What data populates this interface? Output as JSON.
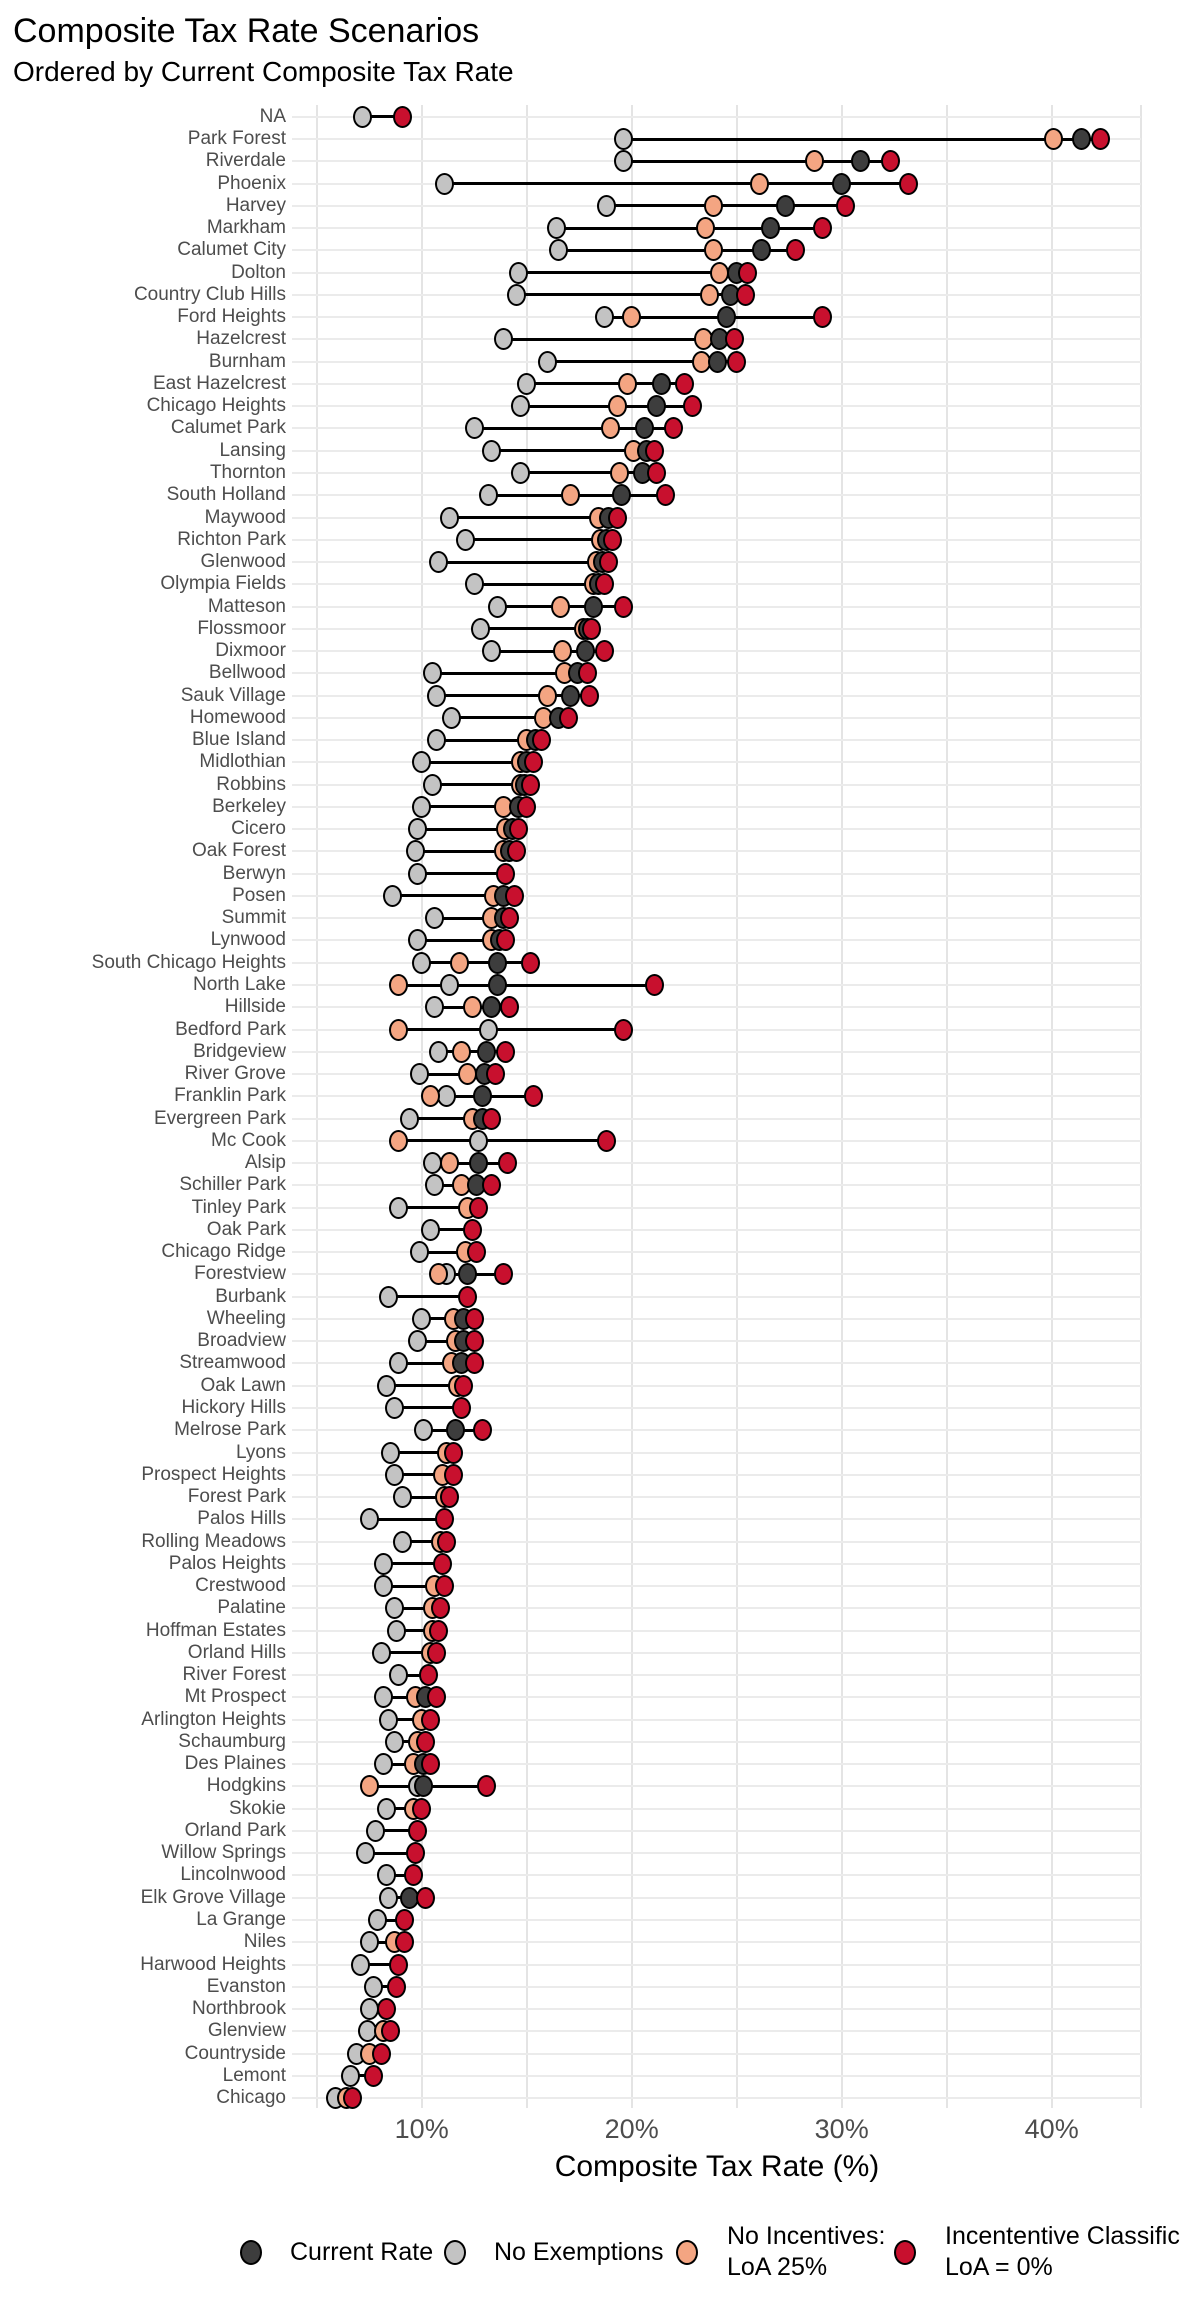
{
  "title": "Composite Tax Rate Scenarios",
  "subtitle": "Ordered by Current Composite Tax Rate",
  "x_axis": {
    "label": "Composite Tax Rate (%)",
    "tick_labels": [
      "10%",
      "20%",
      "30%",
      "40%"
    ],
    "tick_values": [
      10,
      20,
      30,
      40
    ]
  },
  "legend": {
    "items": [
      {
        "name": "current-rate",
        "lines": [
          "Current Rate"
        ],
        "color": "#3D3D3D"
      },
      {
        "name": "no-exemptions",
        "lines": [
          "No Exemptions"
        ],
        "color": "#C3C3C3"
      },
      {
        "name": "no-incentives-loa-25",
        "lines": [
          "No Incentives:",
          "LoA 25%"
        ],
        "color": "#F4A582"
      },
      {
        "name": "incentive-classification-loa-0",
        "lines": [
          "Incententive Classific",
          "LoA = 0%"
        ],
        "color": "#C8102E"
      }
    ]
  },
  "chart_data": {
    "type": "scatter",
    "subtype": "dumbbell-dot-plot",
    "title": "Composite Tax Rate Scenarios",
    "subtitle": "Ordered by Current Composite Tax Rate",
    "xlabel": "Composite Tax Rate (%)",
    "ylabel": "",
    "xlim": [
      3.8,
      44.3
    ],
    "x_ticks": [
      10,
      20,
      30,
      40
    ],
    "grid": "on",
    "legend_position": "bottom",
    "categories": [
      "NA",
      "Park Forest",
      "Riverdale",
      "Phoenix",
      "Harvey",
      "Markham",
      "Calumet City",
      "Dolton",
      "Country Club Hills",
      "Ford Heights",
      "Hazelcrest",
      "Burnham",
      "East Hazelcrest",
      "Chicago Heights",
      "Calumet Park",
      "Lansing",
      "Thornton",
      "South Holland",
      "Maywood",
      "Richton Park",
      "Glenwood",
      "Olympia Fields",
      "Matteson",
      "Flossmoor",
      "Dixmoor",
      "Bellwood",
      "Sauk Village",
      "Homewood",
      "Blue Island",
      "Midlothian",
      "Robbins",
      "Berkeley",
      "Cicero",
      "Oak Forest",
      "Berwyn",
      "Posen",
      "Summit",
      "Lynwood",
      "South Chicago Heights",
      "North Lake",
      "Hillside",
      "Bedford Park",
      "Bridgeview",
      "River Grove",
      "Franklin Park",
      "Evergreen Park",
      "Mc Cook",
      "Alsip",
      "Schiller Park",
      "Tinley Park",
      "Oak Park",
      "Chicago Ridge",
      "Forestview",
      "Burbank",
      "Wheeling",
      "Broadview",
      "Streamwood",
      "Oak Lawn",
      "Hickory Hills",
      "Melrose Park",
      "Lyons",
      "Prospect Heights",
      "Forest Park",
      "Palos Hills",
      "Rolling Meadows",
      "Palos Heights",
      "Crestwood",
      "Palatine",
      "Hoffman Estates",
      "Orland Hills",
      "River Forest",
      "Mt Prospect",
      "Arlington Heights",
      "Schaumburg",
      "Des Plaines",
      "Hodgkins",
      "Skokie",
      "Orland Park",
      "Willow Springs",
      "Lincolnwood",
      "Elk Grove Village",
      "La Grange",
      "Niles",
      "Harwood Heights",
      "Evanston",
      "Northbrook",
      "Glenview",
      "Countryside",
      "Lemont",
      "Chicago"
    ],
    "series": [
      {
        "name": "Current Rate",
        "color": "#3D3D3D",
        "values": [
          null,
          41.4,
          30.9,
          30.0,
          27.3,
          26.6,
          26.2,
          25.0,
          24.7,
          24.5,
          24.2,
          24.1,
          21.4,
          21.2,
          20.6,
          20.7,
          20.5,
          19.5,
          18.9,
          18.8,
          18.6,
          18.4,
          18.2,
          17.9,
          17.8,
          17.4,
          17.1,
          16.5,
          15.4,
          15.0,
          14.9,
          14.6,
          14.3,
          14.2,
          null,
          13.9,
          13.9,
          13.7,
          13.6,
          13.6,
          13.3,
          null,
          13.1,
          13.0,
          12.9,
          12.9,
          null,
          12.7,
          12.6,
          null,
          null,
          null,
          12.2,
          null,
          12.0,
          12.0,
          11.9,
          null,
          null,
          11.6,
          null,
          null,
          null,
          null,
          null,
          null,
          null,
          null,
          null,
          null,
          null,
          10.2,
          null,
          null,
          10.1,
          10.1,
          null,
          null,
          null,
          null,
          9.4,
          null,
          null,
          null,
          null,
          null,
          null,
          null,
          null,
          null
        ]
      },
      {
        "name": "No Exemptions",
        "color": "#C3C3C3",
        "values": [
          7.2,
          19.6,
          19.6,
          11.1,
          18.8,
          16.4,
          16.5,
          14.6,
          14.5,
          18.7,
          13.9,
          16.0,
          15.0,
          14.7,
          12.5,
          13.3,
          14.7,
          13.2,
          11.3,
          12.1,
          10.8,
          12.5,
          13.6,
          12.8,
          13.3,
          10.5,
          10.7,
          11.4,
          10.7,
          10.0,
          10.5,
          10.0,
          9.8,
          9.7,
          9.8,
          8.6,
          10.6,
          9.8,
          10.0,
          11.3,
          10.6,
          13.2,
          10.8,
          9.9,
          11.2,
          9.4,
          12.7,
          10.5,
          10.6,
          8.9,
          10.4,
          9.9,
          11.2,
          8.4,
          10.0,
          9.8,
          8.9,
          8.3,
          8.7,
          10.1,
          8.5,
          8.7,
          9.1,
          7.5,
          9.1,
          8.2,
          8.2,
          8.7,
          8.8,
          8.1,
          8.9,
          8.2,
          8.4,
          8.7,
          8.2,
          9.8,
          8.3,
          7.8,
          7.3,
          8.3,
          8.4,
          7.9,
          7.5,
          7.1,
          7.7,
          7.5,
          7.4,
          6.9,
          6.6,
          5.9
        ]
      },
      {
        "name": "No Incentives: LoA 25%",
        "color": "#F4A582",
        "values": [
          null,
          40.1,
          28.7,
          26.1,
          23.9,
          23.5,
          23.9,
          24.2,
          23.7,
          20.0,
          23.4,
          23.3,
          19.8,
          19.3,
          19.0,
          20.1,
          19.4,
          17.1,
          18.4,
          18.5,
          18.3,
          18.2,
          16.6,
          17.7,
          16.7,
          16.8,
          16.0,
          15.8,
          15.0,
          14.7,
          14.7,
          13.9,
          14.0,
          13.9,
          null,
          13.4,
          13.3,
          13.3,
          11.8,
          8.9,
          12.4,
          8.9,
          11.9,
          12.2,
          10.4,
          12.4,
          8.9,
          11.3,
          11.9,
          12.2,
          null,
          12.1,
          10.8,
          null,
          11.5,
          11.6,
          11.4,
          11.7,
          null,
          null,
          11.2,
          11.0,
          11.1,
          null,
          10.9,
          null,
          10.6,
          10.5,
          10.5,
          10.4,
          null,
          9.7,
          10.0,
          9.8,
          9.6,
          7.5,
          9.6,
          null,
          null,
          null,
          null,
          null,
          8.7,
          null,
          null,
          null,
          8.2,
          7.5,
          null,
          6.4
        ]
      },
      {
        "name": "Incententive Classific LoA = 0%",
        "color": "#C8102E",
        "values": [
          9.1,
          42.3,
          32.3,
          33.2,
          30.2,
          29.1,
          27.8,
          25.5,
          25.4,
          29.1,
          24.9,
          25.0,
          22.5,
          22.9,
          22.0,
          21.1,
          21.2,
          21.6,
          19.3,
          19.1,
          18.9,
          18.7,
          19.6,
          18.1,
          18.7,
          17.9,
          18.0,
          17.0,
          15.7,
          15.3,
          15.2,
          15.0,
          14.6,
          14.5,
          14.0,
          14.4,
          14.2,
          14.0,
          15.2,
          21.1,
          14.2,
          19.6,
          14.0,
          13.5,
          15.3,
          13.3,
          18.8,
          14.1,
          13.3,
          12.7,
          12.4,
          12.6,
          13.9,
          12.2,
          12.5,
          12.5,
          12.5,
          12.0,
          11.9,
          12.9,
          11.5,
          11.5,
          11.3,
          11.1,
          11.2,
          11.0,
          11.1,
          10.9,
          10.8,
          10.7,
          10.3,
          10.7,
          10.4,
          10.2,
          10.4,
          13.1,
          10.0,
          9.8,
          9.7,
          9.6,
          10.2,
          9.2,
          9.2,
          8.9,
          8.8,
          8.3,
          8.5,
          8.1,
          7.7,
          6.7
        ]
      }
    ]
  }
}
